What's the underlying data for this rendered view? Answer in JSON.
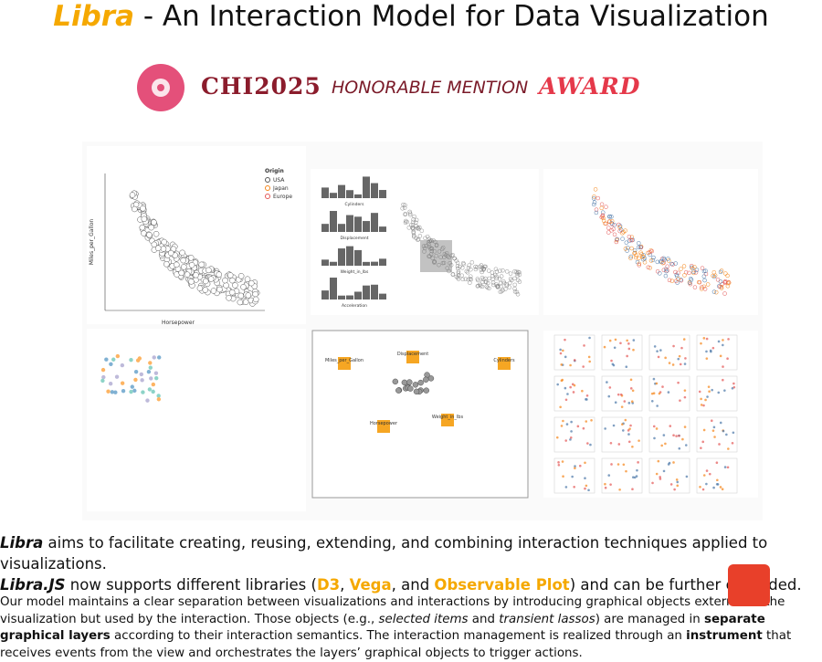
{
  "header": {
    "title_highlight": "Libra",
    "title_rest": " - An Interaction Model for Data Visualization"
  },
  "award": {
    "conference": "CHI2025",
    "mention": "HONORABLE MENTION",
    "award": "AWARD"
  },
  "figure": {
    "scatter": {
      "x_label": "Horsepower",
      "y_label": "Miles_per_Gallon",
      "legend_title": "Origin",
      "legend": [
        "USA",
        "Japan",
        "Europe"
      ]
    },
    "histograms": [
      "Cylinders",
      "Displacement",
      "Weight_in_lbs",
      "Acceleration"
    ],
    "dimensions": [
      "Miles_per_Gallon",
      "Displacement",
      "Cylinders",
      "Horsepower",
      "Weight_in_lbs"
    ]
  },
  "intro": {
    "line1": [
      "Libra",
      " aims to facilitate creating, reusing, extending, and combining interaction techniques applied to visualizations."
    ],
    "line2": [
      "Libra.JS",
      " now supports different libraries (",
      "D3",
      ", ",
      "Vega",
      ", and ",
      "Observable Plot",
      ") and can be further extended."
    ]
  },
  "body": [
    "Our model maintains a clear separation between visualizations and interactions by introducing graphical objects external to the visualization but used by the interaction. Those objects (e.g., ",
    "selected items",
    " and ",
    "transient lassos",
    ") are managed in ",
    "separate graphical layers",
    " according to their interaction semantics. The interaction management is realized through an ",
    "instrument",
    " that receives events from the view and orchestrates the layers’ graphical objects to trigger actions."
  ]
}
